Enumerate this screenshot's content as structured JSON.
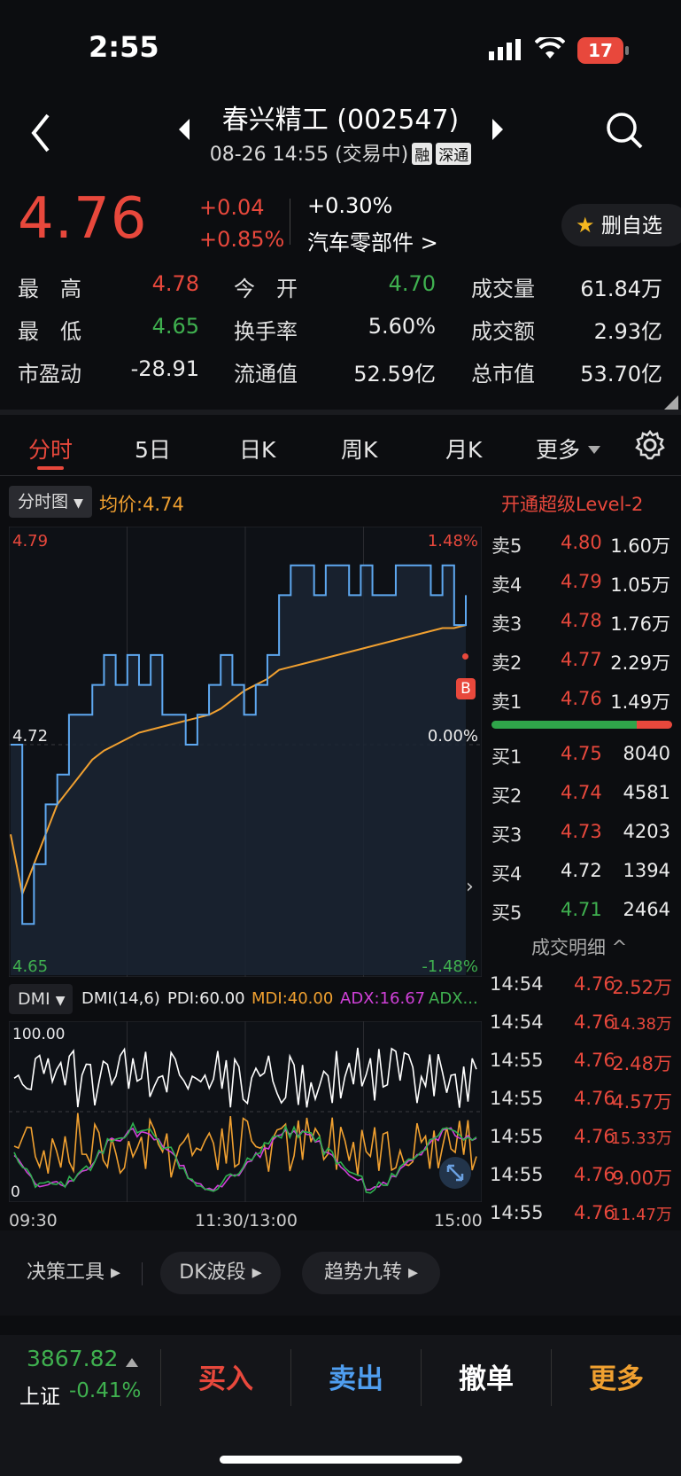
{
  "status": {
    "time": "2:55",
    "battery": "17"
  },
  "header": {
    "title": "春兴精工 (002547)",
    "subtitle": "08-26 14:55 (交易中)",
    "tag1": "融",
    "tag2": "深通"
  },
  "quote": {
    "price": "4.76",
    "change": "+0.04",
    "change_pct": "+0.85%",
    "sector_pct": "+0.30%",
    "sector": "汽车零部件 >",
    "watch_label": "删自选"
  },
  "stats": [
    {
      "label": "最　高",
      "value": "4.78",
      "color": "red"
    },
    {
      "label": "今　开",
      "value": "4.70",
      "color": "green"
    },
    {
      "label": "成交量",
      "value": "61.84万",
      "color": "white"
    },
    {
      "label": "最　低",
      "value": "4.65",
      "color": "green"
    },
    {
      "label": "换手率",
      "value": "5.60%",
      "color": "white"
    },
    {
      "label": "成交额",
      "value": "2.93亿",
      "color": "white"
    },
    {
      "label": "市盈动",
      "value": "-28.91",
      "color": "white"
    },
    {
      "label": "流通值",
      "value": "52.59亿",
      "color": "white"
    },
    {
      "label": "总市值",
      "value": "53.70亿",
      "color": "white"
    }
  ],
  "tabs": [
    "分时",
    "5日",
    "日K",
    "周K",
    "月K",
    "更多"
  ],
  "chart": {
    "type_label": "分时图",
    "avg_label": "均价:4.74",
    "level2": "开通超级Level-2",
    "y_top": "4.79",
    "y_mid": "4.72",
    "y_bot": "4.65",
    "pct_top": "1.48%",
    "pct_mid": "0.00%",
    "pct_bot": "-1.48%",
    "buy_marker": "B",
    "x_labels": [
      "09:30",
      "11:30/13:00",
      "15:00"
    ],
    "dmi_label": "DMI",
    "dmi_params": "DMI(14,6)",
    "pdi": "PDI:60.00",
    "mdi": "MDI:40.00",
    "adx": "ADX:16.67",
    "adxr": "ADX...",
    "dmi_top": "100.00",
    "dmi_bot": "0"
  },
  "chart_data": {
    "type": "line",
    "xlabel": "",
    "ylabel": "",
    "ylim": [
      4.65,
      4.79
    ],
    "series": [
      {
        "name": "",
        "values": [
          4.72,
          4.66,
          4.68,
          4.7,
          4.71,
          4.73,
          4.73,
          4.74,
          4.75,
          4.74,
          4.75,
          4.74,
          4.75,
          4.73,
          4.73,
          4.72,
          4.73,
          4.74,
          4.75,
          4.74,
          4.73,
          4.74,
          4.75,
          4.77,
          4.78,
          4.78,
          4.77,
          4.78,
          4.78,
          4.77,
          4.78,
          4.77,
          4.77,
          4.78,
          4.78,
          4.78,
          4.77,
          4.78,
          4.76,
          4.77
        ]
      },
      {
        "name": "",
        "values": [
          4.69,
          4.67,
          4.68,
          4.69,
          4.7,
          4.705,
          4.71,
          4.715,
          4.718,
          4.72,
          4.722,
          4.724,
          4.725,
          4.726,
          4.727,
          4.728,
          4.729,
          4.73,
          4.732,
          4.735,
          4.738,
          4.74,
          4.742,
          4.745,
          4.746,
          4.747,
          4.748,
          4.749,
          4.75,
          4.751,
          4.752,
          4.753,
          4.754,
          4.755,
          4.756,
          4.757,
          4.758,
          4.759,
          4.759,
          4.76
        ]
      }
    ]
  },
  "order_book": {
    "asks": [
      {
        "label": "卖5",
        "price": "4.80",
        "vol": "1.60万"
      },
      {
        "label": "卖4",
        "price": "4.79",
        "vol": "1.05万"
      },
      {
        "label": "卖3",
        "price": "4.78",
        "vol": "1.76万"
      },
      {
        "label": "卖2",
        "price": "4.77",
        "vol": "2.29万"
      },
      {
        "label": "卖1",
        "price": "4.76",
        "vol": "1.49万"
      }
    ],
    "bids": [
      {
        "label": "买1",
        "price": "4.75",
        "vol": "8040"
      },
      {
        "label": "买2",
        "price": "4.74",
        "vol": "4581"
      },
      {
        "label": "买3",
        "price": "4.73",
        "vol": "4203"
      },
      {
        "label": "买4",
        "price": "4.72",
        "vol": "1394"
      },
      {
        "label": "买5",
        "price": "4.71",
        "vol": "2464"
      }
    ],
    "trades_title": "成交明细 ^",
    "trades": [
      {
        "time": "14:54",
        "price": "4.76",
        "vol": "2.52万"
      },
      {
        "time": "14:54",
        "price": "4.76",
        "vol": "14.38万"
      },
      {
        "time": "14:55",
        "price": "4.76",
        "vol": "2.48万"
      },
      {
        "time": "14:55",
        "price": "4.76",
        "vol": "4.57万"
      },
      {
        "time": "14:55",
        "price": "4.76",
        "vol": "15.33万"
      },
      {
        "time": "14:55",
        "price": "4.76",
        "vol": "9.00万"
      },
      {
        "time": "14:55",
        "price": "4.76",
        "vol": "11.47万"
      }
    ]
  },
  "tools": [
    "决策工具 ▸",
    "DK波段 ▸",
    "趋势九转 ▸"
  ],
  "bottom": {
    "index_value": "3867.82",
    "index_name": "上证",
    "index_chg": "-0.41%",
    "buy": "买入",
    "sell": "卖出",
    "cancel": "撤单",
    "more": "更多"
  },
  "colors": {
    "red": "#e8483c",
    "green": "#3fb04f",
    "blue": "#5ea8f0",
    "orange": "#f0a030",
    "magenta": "#d040d8"
  }
}
